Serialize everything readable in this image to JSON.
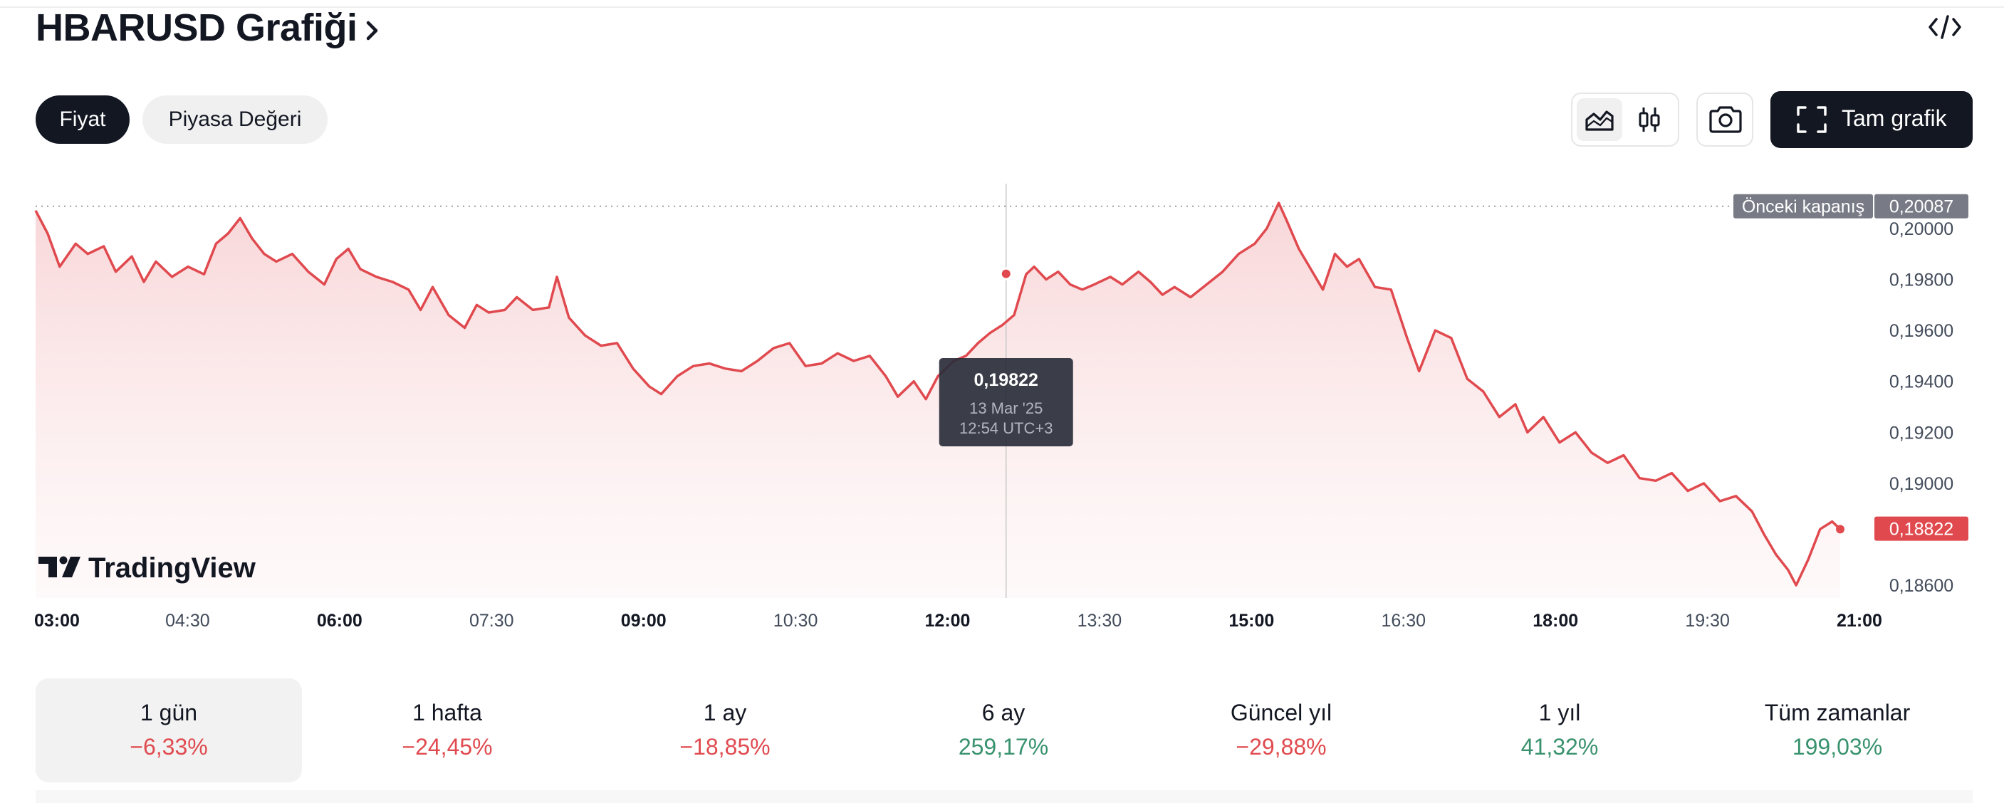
{
  "header": {
    "title": "HBARUSD Grafiği",
    "title_chevron_icon": "chevron-right-icon",
    "embed_icon": "code-embed-icon"
  },
  "tabs": [
    {
      "label": "Fiyat",
      "active": true
    },
    {
      "label": "Piyasa Değeri",
      "active": false
    }
  ],
  "toolbar": {
    "line_chart_icon": "area-chart-icon",
    "candles_icon": "candlestick-icon",
    "snapshot_icon": "camera-icon",
    "full_chart_icon": "fullscreen-icon",
    "full_chart_label": "Tam grafik"
  },
  "chart_data": {
    "type": "area",
    "symbol": "HBARUSD",
    "x_ticks": [
      {
        "label": "03:00",
        "bold": true
      },
      {
        "label": "04:30",
        "bold": false
      },
      {
        "label": "06:00",
        "bold": true
      },
      {
        "label": "07:30",
        "bold": false
      },
      {
        "label": "09:00",
        "bold": true
      },
      {
        "label": "10:30",
        "bold": false
      },
      {
        "label": "12:00",
        "bold": true
      },
      {
        "label": "13:30",
        "bold": false
      },
      {
        "label": "15:00",
        "bold": true
      },
      {
        "label": "16:30",
        "bold": false
      },
      {
        "label": "18:00",
        "bold": true
      },
      {
        "label": "19:30",
        "bold": false
      },
      {
        "label": "21:00",
        "bold": true
      }
    ],
    "y_ticks": [
      "0,20000",
      "0,19800",
      "0,19600",
      "0,19400",
      "0,19200",
      "0,19000",
      "0,18600"
    ],
    "y_tick_values": [
      0.2,
      0.198,
      0.196,
      0.194,
      0.192,
      0.19,
      0.186
    ],
    "ylim": [
      0.1855,
      0.2017
    ],
    "previous_close": {
      "label": "Önceki kapanış",
      "value": "0,20087",
      "numeric": 0.20087
    },
    "last_price": {
      "label": "0,18822",
      "numeric": 0.18822
    },
    "line_color": "#e04a4f",
    "fill_color": "#f8d4d6",
    "points": [
      [
        0,
        0.2007
      ],
      [
        0.3,
        0.1998
      ],
      [
        0.6,
        0.1985
      ],
      [
        1.0,
        0.1994
      ],
      [
        1.3,
        0.199
      ],
      [
        1.7,
        0.1993
      ],
      [
        2.0,
        0.1983
      ],
      [
        2.4,
        0.1989
      ],
      [
        2.7,
        0.1979
      ],
      [
        3.0,
        0.1987
      ],
      [
        3.4,
        0.1981
      ],
      [
        3.8,
        0.1985
      ],
      [
        4.2,
        0.1982
      ],
      [
        4.5,
        0.1994
      ],
      [
        4.8,
        0.1998
      ],
      [
        5.1,
        0.2004
      ],
      [
        5.4,
        0.1996
      ],
      [
        5.7,
        0.199
      ],
      [
        6.0,
        0.1987
      ],
      [
        6.4,
        0.199
      ],
      [
        6.8,
        0.1983
      ],
      [
        7.2,
        0.1978
      ],
      [
        7.5,
        0.1988
      ],
      [
        7.8,
        0.1992
      ],
      [
        8.1,
        0.1984
      ],
      [
        8.5,
        0.1981
      ],
      [
        8.9,
        0.1979
      ],
      [
        9.3,
        0.1976
      ],
      [
        9.6,
        0.1968
      ],
      [
        9.9,
        0.1977
      ],
      [
        10.3,
        0.1966
      ],
      [
        10.7,
        0.1961
      ],
      [
        11.0,
        0.197
      ],
      [
        11.3,
        0.1967
      ],
      [
        11.7,
        0.1968
      ],
      [
        12.0,
        0.1973
      ],
      [
        12.4,
        0.1968
      ],
      [
        12.8,
        0.1969
      ],
      [
        13.0,
        0.1981
      ],
      [
        13.3,
        0.1965
      ],
      [
        13.7,
        0.1958
      ],
      [
        14.1,
        0.1954
      ],
      [
        14.5,
        0.1955
      ],
      [
        14.9,
        0.1945
      ],
      [
        15.3,
        0.1938
      ],
      [
        15.6,
        0.1935
      ],
      [
        16.0,
        0.1942
      ],
      [
        16.4,
        0.1946
      ],
      [
        16.8,
        0.1947
      ],
      [
        17.2,
        0.1945
      ],
      [
        17.6,
        0.1944
      ],
      [
        18.0,
        0.1948
      ],
      [
        18.4,
        0.1953
      ],
      [
        18.8,
        0.1955
      ],
      [
        19.2,
        0.1946
      ],
      [
        19.6,
        0.1947
      ],
      [
        20.0,
        0.1951
      ],
      [
        20.4,
        0.1948
      ],
      [
        20.8,
        0.195
      ],
      [
        21.2,
        0.1942
      ],
      [
        21.5,
        0.1934
      ],
      [
        21.9,
        0.194
      ],
      [
        22.2,
        0.1933
      ],
      [
        22.5,
        0.1942
      ],
      [
        22.9,
        0.1948
      ],
      [
        23.2,
        0.195
      ],
      [
        23.5,
        0.1955
      ],
      [
        23.8,
        0.1959
      ],
      [
        24.1,
        0.1962
      ],
      [
        24.4,
        0.1966
      ],
      [
        24.7,
        0.1982
      ],
      [
        24.9,
        0.1985
      ],
      [
        25.2,
        0.198
      ],
      [
        25.5,
        0.1983
      ],
      [
        25.8,
        0.1978
      ],
      [
        26.1,
        0.1976
      ],
      [
        26.4,
        0.1978
      ],
      [
        26.8,
        0.1981
      ],
      [
        27.1,
        0.1978
      ],
      [
        27.5,
        0.1983
      ],
      [
        27.8,
        0.1979
      ],
      [
        28.1,
        0.1974
      ],
      [
        28.4,
        0.1977
      ],
      [
        28.8,
        0.1973
      ],
      [
        29.2,
        0.1978
      ],
      [
        29.6,
        0.1983
      ],
      [
        30.0,
        0.199
      ],
      [
        30.4,
        0.1994
      ],
      [
        30.7,
        0.2
      ],
      [
        31.0,
        0.201
      ],
      [
        31.2,
        0.2003
      ],
      [
        31.5,
        0.1992
      ],
      [
        31.8,
        0.1984
      ],
      [
        32.1,
        0.1976
      ],
      [
        32.4,
        0.199
      ],
      [
        32.7,
        0.1985
      ],
      [
        33.0,
        0.1988
      ],
      [
        33.4,
        0.1977
      ],
      [
        33.8,
        0.1976
      ],
      [
        34.2,
        0.1957
      ],
      [
        34.5,
        0.1944
      ],
      [
        34.9,
        0.196
      ],
      [
        35.3,
        0.1957
      ],
      [
        35.7,
        0.1941
      ],
      [
        36.1,
        0.1936
      ],
      [
        36.5,
        0.1926
      ],
      [
        36.9,
        0.1931
      ],
      [
        37.2,
        0.192
      ],
      [
        37.6,
        0.1926
      ],
      [
        38.0,
        0.1916
      ],
      [
        38.4,
        0.192
      ],
      [
        38.8,
        0.1912
      ],
      [
        39.2,
        0.1908
      ],
      [
        39.6,
        0.1911
      ],
      [
        40.0,
        0.1902
      ],
      [
        40.4,
        0.1901
      ],
      [
        40.8,
        0.1904
      ],
      [
        41.2,
        0.1897
      ],
      [
        41.6,
        0.19
      ],
      [
        42.0,
        0.1893
      ],
      [
        42.4,
        0.1895
      ],
      [
        42.8,
        0.1889
      ],
      [
        43.1,
        0.188
      ],
      [
        43.4,
        0.1872
      ],
      [
        43.7,
        0.1866
      ],
      [
        43.9,
        0.186
      ],
      [
        44.2,
        0.187
      ],
      [
        44.5,
        0.1882
      ],
      [
        44.8,
        0.1885
      ],
      [
        45.0,
        0.1882
      ]
    ],
    "crosshair": {
      "x": 24.2,
      "price": "0,19822",
      "numeric": 0.19822,
      "date": "13 Mar '25",
      "time": "12:54 UTC+3"
    },
    "watermark": "TradingView",
    "watermark_icon": "tradingview-logo-icon",
    "grid": false
  },
  "periods": [
    {
      "label": "1 gün",
      "value": "−6,33%",
      "trend": "down",
      "active": true
    },
    {
      "label": "1 hafta",
      "value": "−24,45%",
      "trend": "down",
      "active": false
    },
    {
      "label": "1 ay",
      "value": "−18,85%",
      "trend": "down",
      "active": false
    },
    {
      "label": "6 ay",
      "value": "259,17%",
      "trend": "up",
      "active": false
    },
    {
      "label": "Güncel yıl",
      "value": "−29,88%",
      "trend": "down",
      "active": false
    },
    {
      "label": "1 yıl",
      "value": "41,32%",
      "trend": "up",
      "active": false
    },
    {
      "label": "Tüm zamanlar",
      "value": "199,03%",
      "trend": "up",
      "active": false
    }
  ],
  "colors": {
    "down": "#e04a4f",
    "up": "#38926d",
    "dark": "#131722",
    "axis_text": "#424b5a",
    "prev_close_bg": "#787b86"
  }
}
